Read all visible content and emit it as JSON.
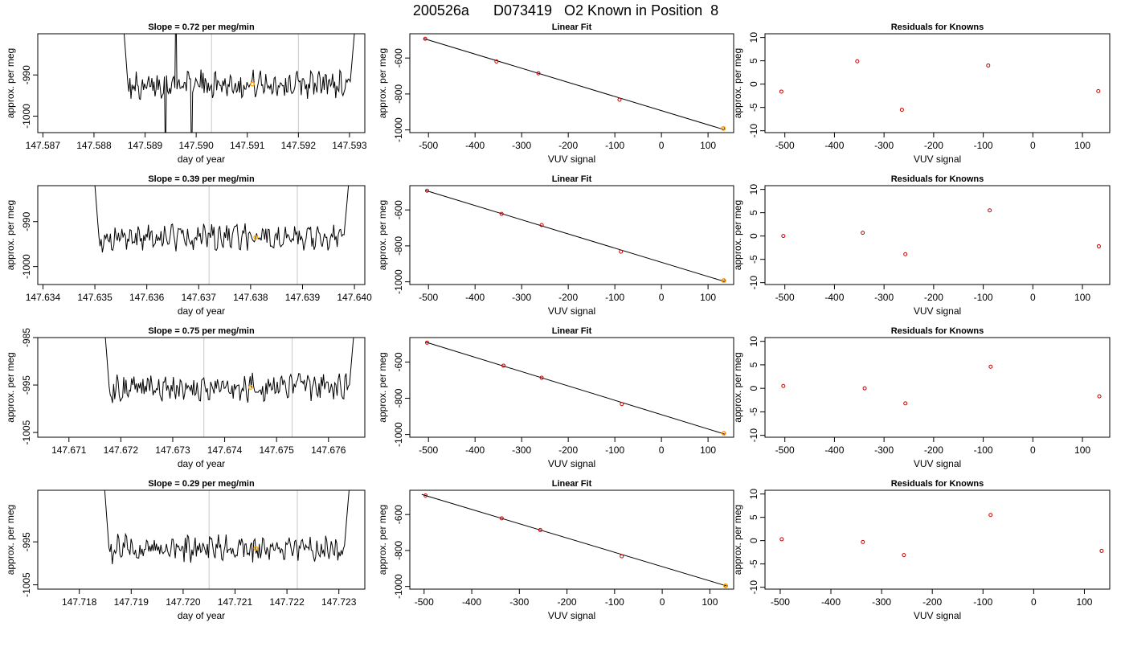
{
  "figure": {
    "title": "200526a      D073419   O2 Known in Position  8"
  },
  "colors": {
    "trace": "#000000",
    "marker_orange": "#ffa500",
    "point_red": "#cc0000",
    "vline": "#c8c8c8",
    "axes": "#000000"
  },
  "chart_data": [
    {
      "id": "timeseries-row-1",
      "type": "line",
      "title": "Slope =  0.72  per meg/min",
      "xlabel": "day of year",
      "ylabel": "approx. per meg",
      "xlim": [
        147.5869,
        147.5933
      ],
      "ylim": [
        -1004,
        -980
      ],
      "xticks": [
        147.587,
        147.588,
        147.589,
        147.59,
        147.591,
        147.592,
        147.593
      ],
      "xtick_labels": [
        "147.587",
        "147.588",
        "147.589",
        "147.590",
        "147.591",
        "147.592",
        "147.593"
      ],
      "yticks": [
        -990,
        -1000
      ],
      "ytick_labels": [
        "-990",
        "-1000"
      ],
      "vlines": [
        147.5903,
        147.592
      ],
      "marker": {
        "x": 147.5911,
        "y": -992.2
      },
      "series": {
        "x_start": 147.5885,
        "x_end": 147.5932,
        "spike_x": [
          147.5894,
          147.5896,
          147.5899
        ]
      }
    },
    {
      "id": "timeseries-row-2",
      "type": "line",
      "title": "Slope =  0.39  per meg/min",
      "xlabel": "day of year",
      "ylabel": "approx. per meg",
      "xlim": [
        147.6339,
        147.6402
      ],
      "ylim": [
        -1004,
        -982
      ],
      "xticks": [
        147.634,
        147.635,
        147.636,
        147.637,
        147.638,
        147.639,
        147.64
      ],
      "xtick_labels": [
        "147.634",
        "147.635",
        "147.636",
        "147.637",
        "147.638",
        "147.639",
        "147.640"
      ],
      "yticks": [
        -990,
        -1000
      ],
      "ytick_labels": [
        "-990",
        "-1000"
      ],
      "vlines": [
        147.6372,
        147.6389
      ],
      "marker": {
        "x": 147.6381,
        "y": -993.5
      },
      "series": {
        "x_start": 147.6349,
        "x_end": 147.64,
        "spike_x": []
      }
    },
    {
      "id": "timeseries-row-3",
      "type": "line",
      "title": "Slope =  0.75  per meg/min",
      "xlabel": "day of year",
      "ylabel": "approx. per meg",
      "xlim": [
        147.6704,
        147.6767
      ],
      "ylim": [
        -1006,
        -985
      ],
      "xticks": [
        147.671,
        147.672,
        147.673,
        147.674,
        147.675,
        147.676
      ],
      "xtick_labels": [
        "147.671",
        "147.672",
        "147.673",
        "147.674",
        "147.675",
        "147.676"
      ],
      "yticks": [
        -985,
        -995,
        -1005
      ],
      "ytick_labels": [
        "-985",
        "-995",
        "-1005"
      ],
      "vlines": [
        147.6736,
        147.6753
      ],
      "marker": {
        "x": 147.6745,
        "y": -995.5
      },
      "series": {
        "x_start": 147.6716,
        "x_end": 147.6766,
        "spike_x": []
      }
    },
    {
      "id": "timeseries-row-4",
      "type": "line",
      "title": "Slope =  0.29  per meg/min",
      "xlabel": "day of year",
      "ylabel": "approx. per meg",
      "xlim": [
        147.7172,
        147.7235
      ],
      "ylim": [
        -1006,
        -983
      ],
      "xticks": [
        147.718,
        147.719,
        147.72,
        147.721,
        147.722,
        147.723
      ],
      "xtick_labels": [
        "147.718",
        "147.719",
        "147.720",
        "147.721",
        "147.722",
        "147.723"
      ],
      "yticks": [
        -995,
        -1005
      ],
      "ytick_labels": [
        "-995",
        "-1005"
      ],
      "vlines": [
        147.7205,
        147.7222
      ],
      "marker": {
        "x": 147.7214,
        "y": -996.5
      },
      "series": {
        "x_start": 147.7184,
        "x_end": 147.7233,
        "spike_x": []
      }
    },
    {
      "id": "fit-row-1",
      "type": "scatter",
      "title": "Linear Fit",
      "xlabel": "VUV signal",
      "ylabel": "approx. per meg",
      "xlim": [
        -540,
        155
      ],
      "ylim": [
        -1015,
        -465
      ],
      "xticks": [
        -500,
        -400,
        -300,
        -200,
        -100,
        0,
        100
      ],
      "xtick_labels": [
        "-500",
        "-400",
        "-300",
        "-200",
        "-100",
        "0",
        "100"
      ],
      "yticks": [
        -600,
        -800,
        -1000
      ],
      "ytick_labels": [
        "-600",
        "-800",
        "-1000"
      ],
      "points": [
        [
          -507,
          -493
        ],
        [
          -354,
          -619
        ],
        [
          -264,
          -685
        ],
        [
          -90,
          -832
        ],
        [
          132,
          -992
        ]
      ],
      "fit_line": [
        [
          -510,
          -492
        ],
        [
          134,
          -998
        ]
      ],
      "marker": {
        "x": 133,
        "y": -992
      }
    },
    {
      "id": "fit-row-2",
      "type": "scatter",
      "title": "Linear Fit",
      "xlabel": "VUV signal",
      "ylabel": "approx. per meg",
      "xlim": [
        -540,
        155
      ],
      "ylim": [
        -1015,
        -465
      ],
      "xticks": [
        -500,
        -400,
        -300,
        -200,
        -100,
        0,
        100
      ],
      "xtick_labels": [
        "-500",
        "-400",
        "-300",
        "-200",
        "-100",
        "0",
        "100"
      ],
      "yticks": [
        -600,
        -800,
        -1000
      ],
      "ytick_labels": [
        "-600",
        "-800",
        "-1000"
      ],
      "points": [
        [
          -503,
          -493
        ],
        [
          -343,
          -622
        ],
        [
          -257,
          -684
        ],
        [
          -87,
          -832
        ],
        [
          133,
          -993
        ]
      ],
      "fit_line": [
        [
          -506,
          -492
        ],
        [
          135,
          -998
        ]
      ],
      "marker": {
        "x": 134,
        "y": -993
      }
    },
    {
      "id": "fit-row-3",
      "type": "scatter",
      "title": "Linear Fit",
      "xlabel": "VUV signal",
      "ylabel": "approx. per meg",
      "xlim": [
        -540,
        155
      ],
      "ylim": [
        -1015,
        -465
      ],
      "xticks": [
        -500,
        -400,
        -300,
        -200,
        -100,
        0,
        100
      ],
      "xtick_labels": [
        "-500",
        "-400",
        "-300",
        "-200",
        "-100",
        "0",
        "100"
      ],
      "yticks": [
        -600,
        -800,
        -1000
      ],
      "ytick_labels": [
        "-600",
        "-800",
        "-1000"
      ],
      "points": [
        [
          -503,
          -493
        ],
        [
          -339,
          -620
        ],
        [
          -257,
          -687
        ],
        [
          -85,
          -832
        ],
        [
          134,
          -993
        ]
      ],
      "fit_line": [
        [
          -506,
          -490
        ],
        [
          136,
          -998
        ]
      ],
      "marker": {
        "x": 134,
        "y": -993
      }
    },
    {
      "id": "fit-row-4",
      "type": "scatter",
      "title": "Linear Fit",
      "xlabel": "VUV signal",
      "ylabel": "approx. per meg",
      "xlim": [
        -530,
        150
      ],
      "ylim": [
        -1015,
        -465
      ],
      "xticks": [
        -500,
        -400,
        -300,
        -200,
        -100,
        0,
        100
      ],
      "xtick_labels": [
        "-500",
        "-400",
        "-300",
        "-200",
        "-100",
        "0",
        "100"
      ],
      "yticks": [
        -600,
        -800,
        -1000
      ],
      "ytick_labels": [
        "-600",
        "-800",
        "-1000"
      ],
      "points": [
        [
          -497,
          -494
        ],
        [
          -337,
          -621
        ],
        [
          -256,
          -686
        ],
        [
          -85,
          -832
        ],
        [
          134,
          -996
        ]
      ],
      "fit_line": [
        [
          -505,
          -488
        ],
        [
          136,
          -998
        ]
      ],
      "marker": {
        "x": 133,
        "y": -996
      }
    },
    {
      "id": "resid-row-1",
      "type": "scatter",
      "title": "Residuals for Knowns",
      "xlabel": "VUV signal",
      "ylabel": "approx. per meg",
      "xlim": [
        -540,
        155
      ],
      "ylim": [
        -10.4,
        10.8
      ],
      "xticks": [
        -500,
        -400,
        -300,
        -200,
        -100,
        0,
        100
      ],
      "xtick_labels": [
        "-500",
        "-400",
        "-300",
        "-200",
        "-100",
        "0",
        "100"
      ],
      "yticks": [
        10,
        5,
        0,
        -5,
        -10
      ],
      "ytick_labels": [
        "10",
        "5",
        "0",
        "-5",
        "-10"
      ],
      "points": [
        [
          -507,
          -1.6
        ],
        [
          -354,
          4.9
        ],
        [
          -264,
          -5.5
        ],
        [
          -90,
          4.0
        ],
        [
          132,
          -1.5
        ]
      ]
    },
    {
      "id": "resid-row-2",
      "type": "scatter",
      "title": "Residuals for Knowns",
      "xlabel": "VUV signal",
      "ylabel": "approx. per meg",
      "xlim": [
        -540,
        155
      ],
      "ylim": [
        -10.4,
        10.8
      ],
      "xticks": [
        -500,
        -400,
        -300,
        -200,
        -100,
        0,
        100
      ],
      "xtick_labels": [
        "-500",
        "-400",
        "-300",
        "-200",
        "-100",
        "0",
        "100"
      ],
      "yticks": [
        10,
        5,
        0,
        -5,
        -10
      ],
      "ytick_labels": [
        "10",
        "5",
        "0",
        "-5",
        "-10"
      ],
      "points": [
        [
          -503,
          0.0
        ],
        [
          -343,
          0.7
        ],
        [
          -257,
          -3.9
        ],
        [
          -87,
          5.5
        ],
        [
          133,
          -2.2
        ]
      ]
    },
    {
      "id": "resid-row-3",
      "type": "scatter",
      "title": "Residuals for Knowns",
      "xlabel": "VUV signal",
      "ylabel": "approx. per meg",
      "xlim": [
        -540,
        155
      ],
      "ylim": [
        -10.4,
        10.8
      ],
      "xticks": [
        -500,
        -400,
        -300,
        -200,
        -100,
        0,
        100
      ],
      "xtick_labels": [
        "-500",
        "-400",
        "-300",
        "-200",
        "-100",
        "0",
        "100"
      ],
      "yticks": [
        10,
        5,
        0,
        -5,
        -10
      ],
      "ytick_labels": [
        "10",
        "5",
        "0",
        "-5",
        "-10"
      ],
      "points": [
        [
          -503,
          0.5
        ],
        [
          -339,
          0.0
        ],
        [
          -257,
          -3.2
        ],
        [
          -85,
          4.6
        ],
        [
          134,
          -1.7
        ]
      ]
    },
    {
      "id": "resid-row-4",
      "type": "scatter",
      "title": "Residuals for Knowns",
      "xlabel": "VUV signal",
      "ylabel": "approx. per meg",
      "xlim": [
        -530,
        150
      ],
      "ylim": [
        -10.4,
        10.8
      ],
      "xticks": [
        -500,
        -400,
        -300,
        -200,
        -100,
        0,
        100
      ],
      "xtick_labels": [
        "-500",
        "-400",
        "-300",
        "-200",
        "-100",
        "0",
        "100"
      ],
      "yticks": [
        10,
        5,
        0,
        -5,
        -10
      ],
      "ytick_labels": [
        "10",
        "5",
        "0",
        "-5",
        "-10"
      ],
      "points": [
        [
          -497,
          0.3
        ],
        [
          -337,
          -0.3
        ],
        [
          -256,
          -3.1
        ],
        [
          -85,
          5.5
        ],
        [
          134,
          -2.2
        ]
      ]
    }
  ]
}
